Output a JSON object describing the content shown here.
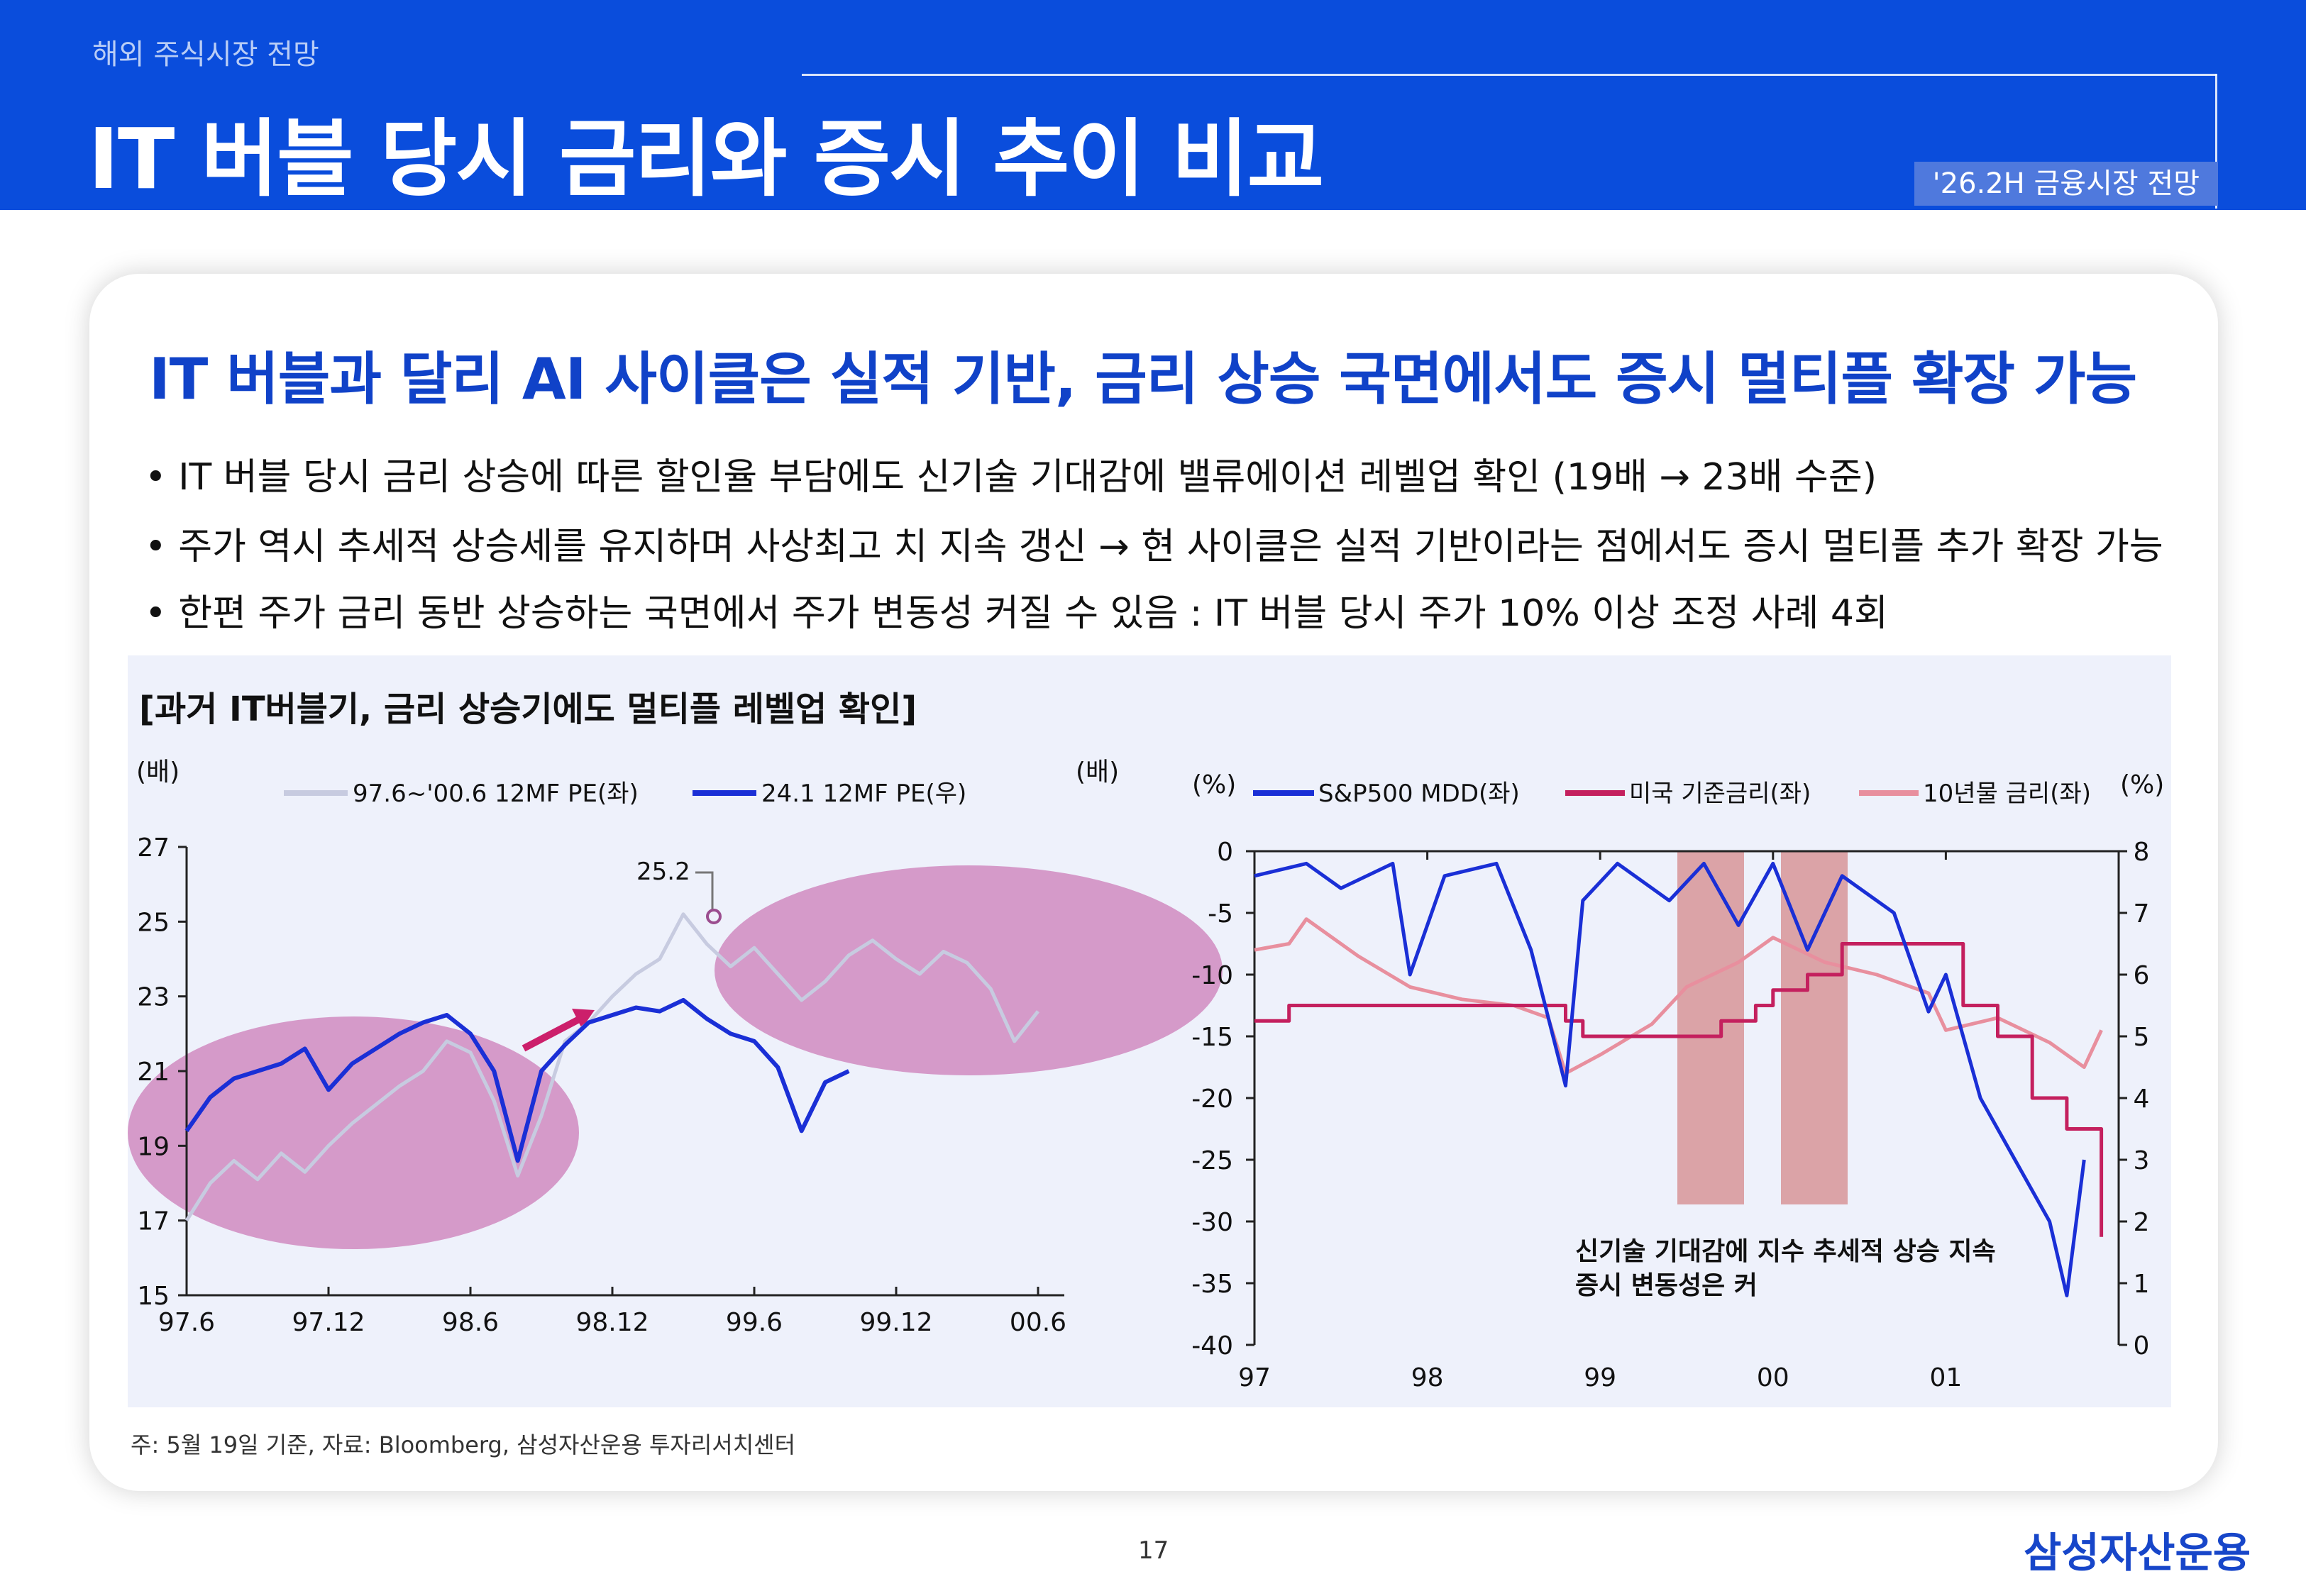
{
  "header": {
    "section_label": "해외 주식시장 전망",
    "title": "IT 버블 당시 금리와 증시 추이 비교",
    "doc_tag": "'26.2H 금융시장 전망"
  },
  "content": {
    "headline": "IT 버블과 달리 AI 사이클은 실적 기반, 금리 상승 국면에서도 증시 멀티플 확장 가능",
    "bullets": [
      "• IT 버블 당시 금리 상승에 따른 할인율 부담에도 신기술 기대감에 밸류에이션 레벨업 확인 (19배 → 23배 수준)",
      "• 주가 역시 추세적 상승세를 유지하며 사상최고 치 지속 갱신 → 현 사이클은 실적 기반이라는 점에서도 증시 멀티플 추가 확장 가능",
      "• 한편 주가 금리 동반 상승하는 국면에서 주가 변동성 커질 수 있음 : IT 버블 당시 주가 10% 이상 조정 사례 4회"
    ],
    "chart_heading": "[과거 IT버블기, 금리 상승기에도 멀티플 레벨업 확인]",
    "footnote": "주: 5월 19일 기준, 자료: Bloomberg, 삼성자산운용 투자리서치센터",
    "page_number": "17",
    "company": "삼성자산운용"
  },
  "colors": {
    "brand_blue": "#0a4ddc",
    "series_dark_blue": "#1a2fd6",
    "series_light": "#c7cbe0",
    "policy_rate": "#c4205e",
    "treasury_10y": "#e88f9e",
    "highlight_pink": "#d59ac9",
    "recession_band": "#dba3a7"
  },
  "chart_data": [
    {
      "type": "line",
      "unit_left": "(배)",
      "unit_right": "(배)",
      "x_tick_labels": [
        "97.6",
        "97.12",
        "98.6",
        "98.12",
        "99.6",
        "99.12",
        "00.6"
      ],
      "ylim": [
        15,
        27
      ],
      "y_ticks": [
        15,
        17,
        19,
        21,
        23,
        25,
        27
      ],
      "legend_position": "top",
      "series": [
        {
          "name": "97.6~'00.6 12MF PE(좌)",
          "color": "#c7cbe0",
          "x": [
            0,
            1,
            2,
            3,
            4,
            5,
            6,
            7,
            8,
            9,
            10,
            11,
            12,
            13,
            14,
            15,
            16,
            17,
            18,
            19,
            20,
            21,
            22,
            23,
            24,
            25,
            26,
            27,
            28,
            29,
            30,
            31,
            32,
            33,
            34,
            35,
            36
          ],
          "values": [
            17.0,
            18.0,
            18.6,
            18.1,
            18.8,
            18.3,
            19.0,
            19.6,
            20.1,
            20.6,
            21.0,
            21.8,
            21.5,
            20.2,
            18.2,
            19.8,
            21.8,
            22.3,
            23.0,
            23.6,
            24.0,
            25.2,
            24.4,
            23.8,
            24.3,
            23.6,
            22.9,
            23.4,
            24.1,
            24.5,
            24.0,
            23.6,
            24.2,
            23.9,
            23.2,
            21.8,
            22.6
          ]
        },
        {
          "name": "24.1 12MF PE(우)",
          "color": "#1a2fd6",
          "x": [
            0,
            1,
            2,
            3,
            4,
            5,
            6,
            7,
            8,
            9,
            10,
            11,
            12,
            13,
            14,
            15,
            16,
            17,
            18,
            19,
            20,
            21,
            22,
            23,
            24,
            25,
            26,
            27,
            28
          ],
          "values": [
            19.4,
            20.3,
            20.8,
            21.0,
            21.2,
            21.6,
            20.5,
            21.2,
            21.6,
            22.0,
            22.3,
            22.5,
            22.0,
            21.0,
            18.6,
            21.0,
            21.7,
            22.3,
            22.5,
            22.7,
            22.6,
            22.9,
            22.4,
            22.0,
            21.8,
            21.1,
            19.4,
            20.7,
            21.0
          ]
        }
      ],
      "annotations": [
        "25.2"
      ]
    },
    {
      "type": "line",
      "unit_left": "(%)",
      "unit_right": "(%)",
      "x_tick_labels": [
        "97",
        "98",
        "99",
        "00",
        "01"
      ],
      "ylim_left": [
        -40,
        0
      ],
      "y_ticks_left": [
        0,
        -5,
        -10,
        -15,
        -20,
        -25,
        -30,
        -35,
        -40
      ],
      "ylim_right": [
        0,
        8
      ],
      "y_ticks_right": [
        8,
        7,
        6,
        5,
        4,
        3,
        2,
        1,
        0
      ],
      "legend_position": "top",
      "series": [
        {
          "name": "S&P500 MDD(좌)",
          "axis": "left",
          "color": "#1a2fd6",
          "x": [
            97.0,
            97.3,
            97.5,
            97.8,
            97.9,
            98.1,
            98.4,
            98.6,
            98.8,
            98.9,
            99.1,
            99.4,
            99.6,
            99.8,
            100.0,
            100.2,
            100.4,
            100.7,
            100.9,
            101.0,
            101.2,
            101.4,
            101.6,
            101.7,
            101.8
          ],
          "values": [
            -2,
            -1,
            -3,
            -1,
            -10,
            -2,
            -1,
            -8,
            -19,
            -4,
            -1,
            -4,
            -1,
            -6,
            -1,
            -8,
            -2,
            -5,
            -13,
            -10,
            -20,
            -25,
            -30,
            -36,
            -25
          ]
        },
        {
          "name": "미국 기준금리(좌)",
          "axis": "right",
          "color": "#c4205e",
          "x": [
            97.0,
            97.2,
            98.7,
            98.8,
            98.9,
            99.5,
            99.7,
            99.9,
            100.0,
            100.2,
            100.4,
            101.0,
            101.1,
            101.3,
            101.5,
            101.7,
            101.9
          ],
          "values": [
            5.25,
            5.5,
            5.5,
            5.25,
            5.0,
            5.0,
            5.25,
            5.5,
            5.75,
            6.0,
            6.5,
            6.5,
            5.5,
            5.0,
            4.0,
            3.5,
            1.75
          ]
        },
        {
          "name": "10년물 금리(좌)",
          "axis": "right",
          "color": "#e88f9e",
          "x": [
            97.0,
            97.2,
            97.3,
            97.6,
            97.9,
            98.2,
            98.5,
            98.7,
            98.8,
            99.0,
            99.3,
            99.5,
            99.8,
            100.0,
            100.3,
            100.6,
            100.9,
            101.0,
            101.3,
            101.6,
            101.8,
            101.9
          ],
          "values": [
            6.4,
            6.5,
            6.9,
            6.3,
            5.8,
            5.6,
            5.5,
            5.3,
            4.4,
            4.7,
            5.2,
            5.8,
            6.2,
            6.6,
            6.2,
            6.0,
            5.7,
            5.1,
            5.3,
            4.9,
            4.5,
            5.1
          ]
        }
      ],
      "annotations": [
        "신기술 기대감에 지수 추세적 상승 지속",
        "증시 변동성은 커"
      ]
    }
  ]
}
